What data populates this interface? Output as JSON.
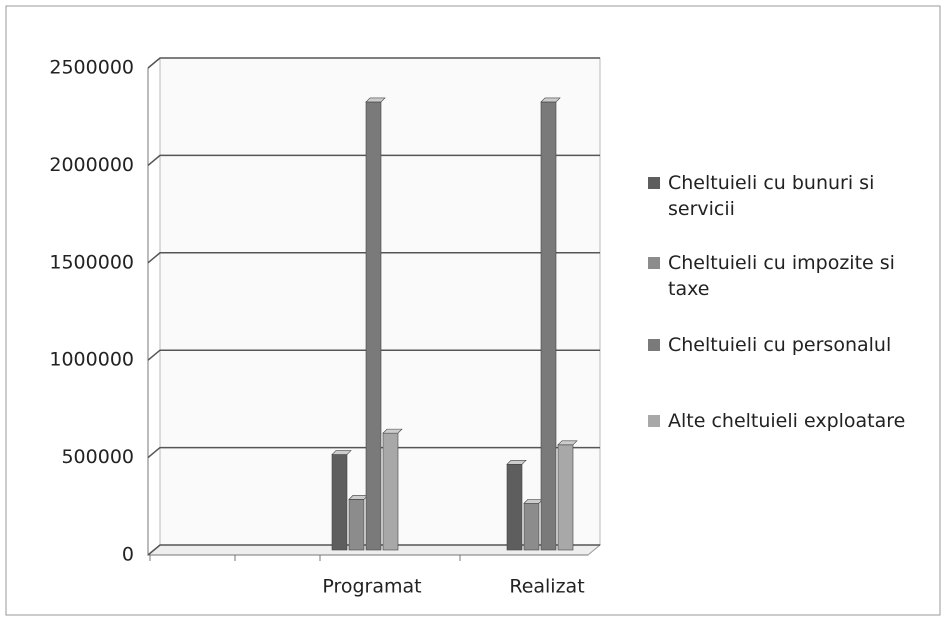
{
  "chart_data": {
    "type": "bar",
    "categories": [
      "Programat",
      "Realizat"
    ],
    "series": [
      {
        "name": "Cheltuieli cu bunuri si servicii",
        "color": "#5e5e5e",
        "values": [
          490000,
          440000
        ]
      },
      {
        "name": "Cheltuieli cu impozite si taxe",
        "color": "#8c8c8c",
        "values": [
          260000,
          240000
        ]
      },
      {
        "name": "Cheltuieli cu personalul",
        "color": "#7a7a7a",
        "values": [
          2300000,
          2300000
        ]
      },
      {
        "name": "Alte cheltuieli exploatare",
        "color": "#a8a8a8",
        "values": [
          600000,
          540000
        ]
      }
    ],
    "ylim": [
      0,
      2500000
    ],
    "yticks": [
      0,
      500000,
      1000000,
      1500000,
      2000000,
      2500000
    ],
    "grid": true,
    "legend": "right"
  }
}
